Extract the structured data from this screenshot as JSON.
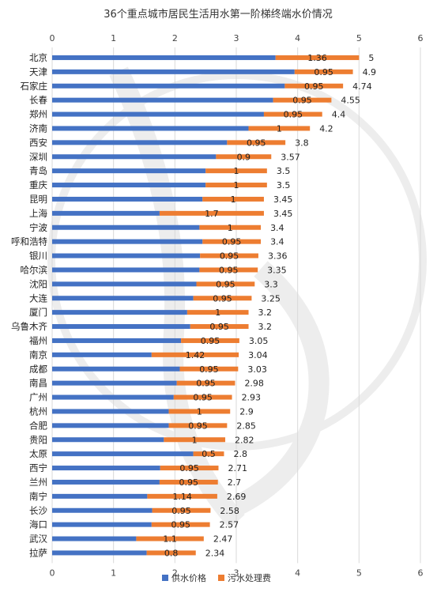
{
  "chart_data": {
    "type": "bar",
    "orientation": "horizontal",
    "stacked": true,
    "title": "36个重点城市居民生活用水第一阶梯终端水价情况",
    "xlim": [
      0,
      6
    ],
    "x_ticks": [
      "0",
      "1",
      "2",
      "3",
      "4",
      "5",
      "6"
    ],
    "grid": true,
    "legend_position": "bottom",
    "categories": [
      "北京",
      "天津",
      "石家庄",
      "长春",
      "郑州",
      "济南",
      "西安",
      "深圳",
      "青岛",
      "重庆",
      "昆明",
      "上海",
      "宁波",
      "呼和浩特",
      "银川",
      "哈尔滨",
      "沈阳",
      "大连",
      "厦门",
      "乌鲁木齐",
      "福州",
      "南京",
      "成都",
      "南昌",
      "广州",
      "杭州",
      "合肥",
      "贵阳",
      "太原",
      "西宁",
      "兰州",
      "南宁",
      "长沙",
      "海口",
      "武汉",
      "拉萨"
    ],
    "series": [
      {
        "name": "供水价格",
        "color": "#4472C4",
        "values": [
          3.64,
          3.95,
          3.79,
          3.6,
          3.45,
          3.2,
          2.85,
          2.67,
          2.5,
          2.5,
          2.45,
          1.75,
          2.4,
          2.45,
          2.41,
          2.4,
          2.35,
          2.3,
          2.2,
          2.25,
          2.1,
          1.62,
          2.08,
          2.03,
          1.98,
          1.9,
          1.9,
          1.82,
          2.3,
          1.76,
          1.75,
          1.55,
          1.63,
          1.62,
          1.37,
          1.54
        ]
      },
      {
        "name": "污水处理费",
        "color": "#ED7D31",
        "values": [
          1.36,
          0.95,
          0.95,
          0.95,
          0.95,
          1,
          0.95,
          0.9,
          1,
          1,
          1,
          1.7,
          1,
          0.95,
          0.95,
          0.95,
          0.95,
          0.95,
          1,
          0.95,
          0.95,
          1.42,
          0.95,
          0.95,
          0.95,
          1,
          0.95,
          1,
          0.5,
          0.95,
          0.95,
          1.14,
          0.95,
          0.95,
          1.1,
          0.8
        ]
      }
    ],
    "total_labels": [
      "5",
      "4.9",
      "4.74",
      "4.55",
      "4.4",
      "4.2",
      "3.8",
      "3.57",
      "3.5",
      "3.5",
      "3.45",
      "3.45",
      "3.4",
      "3.4",
      "3.36",
      "3.35",
      "3.3",
      "3.25",
      "3.2",
      "3.2",
      "3.05",
      "3.04",
      "3.03",
      "2.98",
      "2.93",
      "2.9",
      "2.85",
      "2.82",
      "2.8",
      "2.71",
      "2.7",
      "2.69",
      "2.58",
      "2.57",
      "2.47",
      "2.34"
    ],
    "sewage_labels": [
      "1.36",
      "0.95",
      "0.95",
      "0.95",
      "0.95",
      "1",
      "0.95",
      "0.9",
      "1",
      "1",
      "1",
      "1.7",
      "1",
      "0.95",
      "0.95",
      "0.95",
      "0.95",
      "0.95",
      "1",
      "0.95",
      "0.95",
      "1.42",
      "0.95",
      "0.95",
      "0.95",
      "1",
      "0.95",
      "1",
      "0.5",
      "0.95",
      "0.95",
      "1.14",
      "0.95",
      "0.95",
      "1.1",
      "0.8"
    ]
  }
}
